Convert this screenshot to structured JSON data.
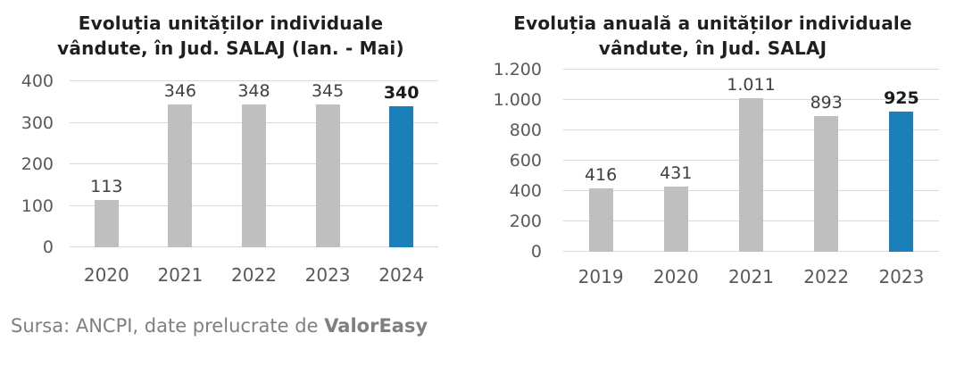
{
  "page": {
    "source_prefix": "Sursa: ANCPI, date prelucrate de ",
    "source_brand": "ValorEasy"
  },
  "colors": {
    "bar_default": "#bfbfbf",
    "bar_highlight": "#1a80ba",
    "gridline": "#d9d9d9",
    "title_text": "#1f1f1f",
    "axis_text": "#595959",
    "value_label_text": "#404040",
    "value_label_highlight_text": "#1a1a1a",
    "source_text": "#7f7f7f"
  },
  "chart_data": [
    {
      "type": "bar",
      "title": "Evoluția unităților individuale vândute, în Jud. SALAJ (Ian. - Mai)",
      "title_lines": [
        "Evoluția unităților individuale",
        "vândute, în Jud. SALAJ (Ian. - Mai)"
      ],
      "categories": [
        "2020",
        "2021",
        "2022",
        "2023",
        "2024"
      ],
      "values": [
        113,
        346,
        348,
        345,
        340
      ],
      "value_labels": [
        "113",
        "346",
        "348",
        "345",
        "340"
      ],
      "highlight_index": 4,
      "xlabel": "",
      "ylabel": "",
      "ylim": [
        0,
        400
      ],
      "yticks": [
        0,
        100,
        200,
        300,
        400
      ],
      "ytick_labels": [
        "0",
        "100",
        "200",
        "300",
        "400"
      ],
      "grid": true,
      "legend": false
    },
    {
      "type": "bar",
      "title": "Evoluția anuală a unităților individuale vândute, în Jud. SALAJ",
      "title_lines": [
        "Evoluția anuală a unităților individuale",
        "vândute, în Jud. SALAJ"
      ],
      "categories": [
        "2019",
        "2020",
        "2021",
        "2022",
        "2023"
      ],
      "values": [
        416,
        431,
        1011,
        893,
        925
      ],
      "value_labels": [
        "416",
        "431",
        "1.011",
        "893",
        "925"
      ],
      "highlight_index": 4,
      "xlabel": "",
      "ylabel": "",
      "ylim": [
        0,
        1200
      ],
      "yticks": [
        0,
        200,
        400,
        600,
        800,
        1000,
        1200
      ],
      "ytick_labels": [
        "0",
        "200",
        "400",
        "600",
        "800",
        "1.000",
        "1.200"
      ],
      "grid": true,
      "legend": false
    }
  ]
}
